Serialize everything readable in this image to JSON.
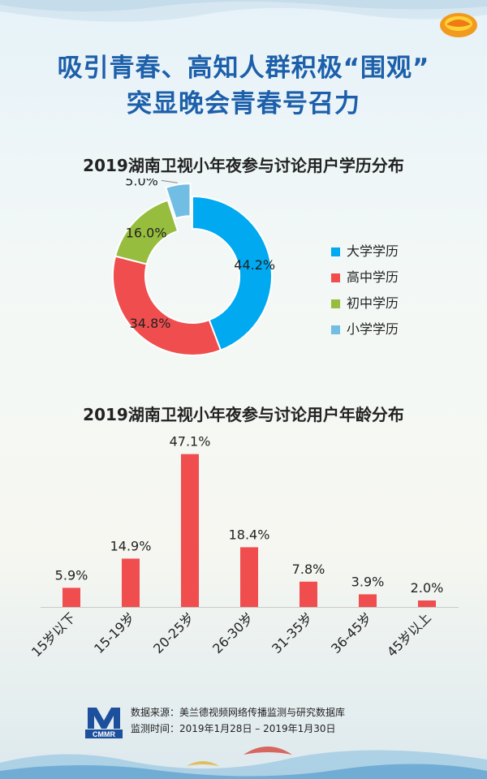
{
  "page": {
    "title_line1": "吸引青春、高知人群积极“围观”",
    "title_line2": "突显晚会青春号召力"
  },
  "source": {
    "logo_text": "CMMR",
    "line1": "数据来源：美兰德视频网络传播监测与研究数据库",
    "line2": "监测时间：2019年1月28日 – 2019年1月30日"
  },
  "colors": {
    "title_blue": "#1c5faa",
    "bar_red": "#f04e4e",
    "edu_college": "#00a9f0",
    "edu_high": "#f04e4e",
    "edu_middle": "#96bd3e",
    "edu_primary": "#72bde4"
  },
  "chart_data": [
    {
      "type": "pie",
      "style": "donut",
      "title": "2019湖南卫视小年夜参与讨论用户学历分布",
      "categories": [
        "大学学历",
        "高中学历",
        "初中学历",
        "小学学历"
      ],
      "values": [
        44.2,
        34.8,
        16.0,
        5.0
      ],
      "labels": [
        "44.2%",
        "34.8%",
        "16.0%",
        "5.0%"
      ],
      "colors": [
        "#00a9f0",
        "#f04e4e",
        "#96bd3e",
        "#72bde4"
      ],
      "exploded": [
        "小学学历"
      ],
      "legend": "right"
    },
    {
      "type": "bar",
      "title": "2019湖南卫视小年夜参与讨论用户年龄分布",
      "categories": [
        "15岁以下",
        "15-19岁",
        "20-25岁",
        "26-30岁",
        "31-35岁",
        "36-45岁",
        "45岁以上"
      ],
      "values": [
        5.9,
        14.9,
        47.1,
        18.4,
        7.8,
        3.9,
        2.0
      ],
      "labels": [
        "5.9%",
        "14.9%",
        "47.1%",
        "18.4%",
        "7.8%",
        "3.9%",
        "2.0%"
      ],
      "color": "#f04e4e",
      "ylim": [
        0,
        50
      ],
      "grid": false
    }
  ]
}
